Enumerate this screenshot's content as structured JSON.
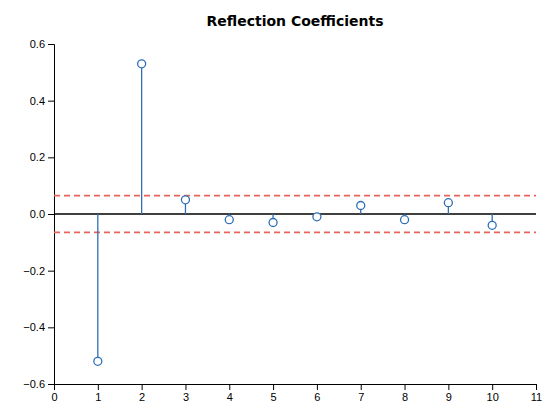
{
  "chart_data": {
    "type": "stem",
    "title": "Reflection Coefficients",
    "x": [
      1,
      2,
      3,
      4,
      5,
      6,
      7,
      8,
      9,
      10
    ],
    "values": [
      -0.52,
      0.53,
      0.05,
      -0.02,
      -0.03,
      -0.01,
      0.03,
      -0.02,
      0.04,
      -0.04
    ],
    "color": "#2f6eb5",
    "marker": "circle",
    "xlim": [
      0,
      11
    ],
    "ylim": [
      -0.6,
      0.6
    ],
    "xticks": [
      0,
      1,
      2,
      3,
      4,
      5,
      6,
      7,
      8,
      9,
      10,
      11
    ],
    "yticks": [
      {
        "value": -0.6,
        "label": "−0.6"
      },
      {
        "value": -0.4,
        "label": "−0.4"
      },
      {
        "value": -0.2,
        "label": "−0.2"
      },
      {
        "value": 0.0,
        "label": "0.0"
      },
      0.2,
      0.4,
      0.6
    ],
    "grid": false,
    "baseline": 0,
    "reference_lines": {
      "values": [
        0.065,
        -0.065
      ],
      "color": "#e8635a",
      "line_style": "dashed"
    }
  }
}
